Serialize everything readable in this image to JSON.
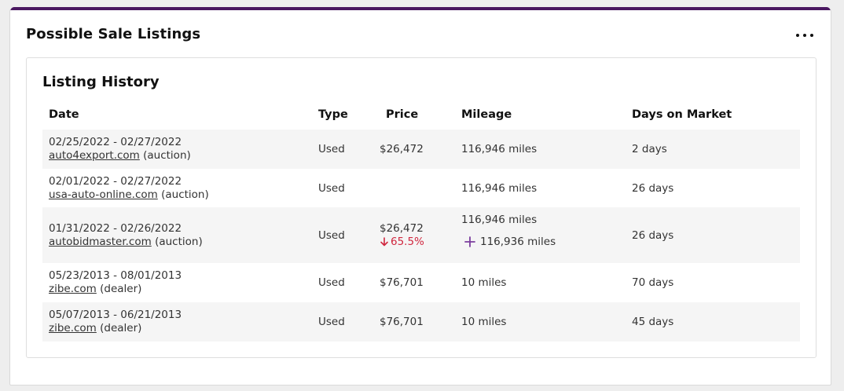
{
  "card": {
    "title": "Possible Sale Listings",
    "menu_icon": "more-horizontal-icon",
    "accent_color": "#4a1760"
  },
  "history": {
    "title": "Listing History",
    "columns": [
      "Date",
      "Type",
      "Price",
      "Mileage",
      "Days on Market"
    ],
    "rows": [
      {
        "dates": "02/25/2022 - 02/27/2022",
        "site": "auto4export.com",
        "kind": "(auction)",
        "type": "Used",
        "price": "$26,472",
        "mileage": "116,946 miles",
        "days": "2 days"
      },
      {
        "dates": "02/01/2022 - 02/27/2022",
        "site": "usa-auto-online.com",
        "kind": "(auction)",
        "type": "Used",
        "price": "",
        "mileage": "116,946 miles",
        "days": "26 days"
      },
      {
        "dates": "01/31/2022 - 02/26/2022",
        "site": "autobidmaster.com",
        "kind": "(auction)",
        "type": "Used",
        "price": "$26,472",
        "price_change": "65.5%",
        "mileage": "116,946 miles",
        "mileage_extra": "116,936 miles",
        "days": "26 days"
      },
      {
        "dates": "05/23/2013 - 08/01/2013",
        "site": "zibe.com",
        "kind": "(dealer)",
        "type": "Used",
        "price": "$76,701",
        "mileage": "10 miles",
        "days": "70 days"
      },
      {
        "dates": "05/07/2013 - 06/21/2013",
        "site": "zibe.com",
        "kind": "(dealer)",
        "type": "Used",
        "price": "$76,701",
        "mileage": "10 miles",
        "days": "45 days"
      }
    ]
  }
}
